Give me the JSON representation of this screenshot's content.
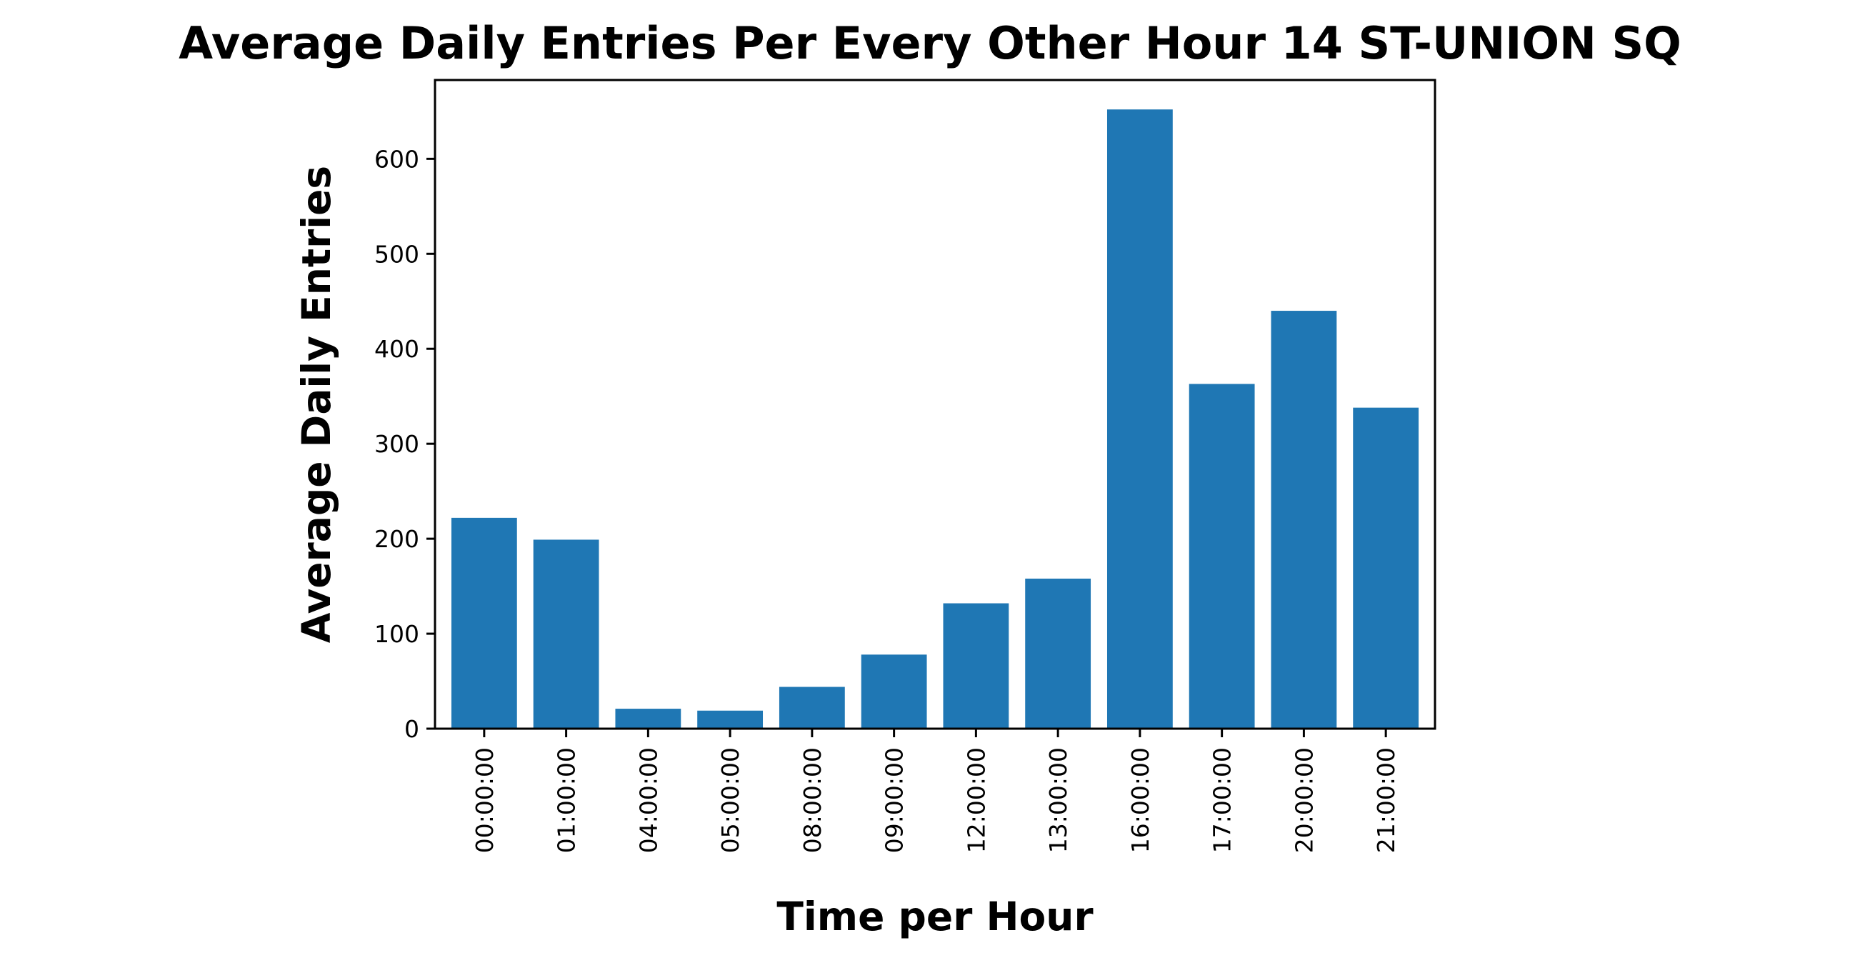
{
  "chart_data": {
    "type": "bar",
    "title": "Average Daily Entries Per Every Other Hour 14 ST-UNION SQ",
    "xlabel": "Time per Hour",
    "ylabel": "Average Daily Entries",
    "categories": [
      "00:00:00",
      "01:00:00",
      "04:00:00",
      "05:00:00",
      "08:00:00",
      "09:00:00",
      "12:00:00",
      "13:00:00",
      "16:00:00",
      "17:00:00",
      "20:00:00",
      "21:00:00"
    ],
    "values": [
      222,
      199,
      21,
      19,
      44,
      78,
      132,
      158,
      652,
      363,
      440,
      338
    ],
    "ylim": [
      0,
      683
    ],
    "yticks": [
      0,
      100,
      200,
      300,
      400,
      500,
      600
    ],
    "grid": false,
    "legend": "none",
    "bar_color": "#1f77b4"
  }
}
